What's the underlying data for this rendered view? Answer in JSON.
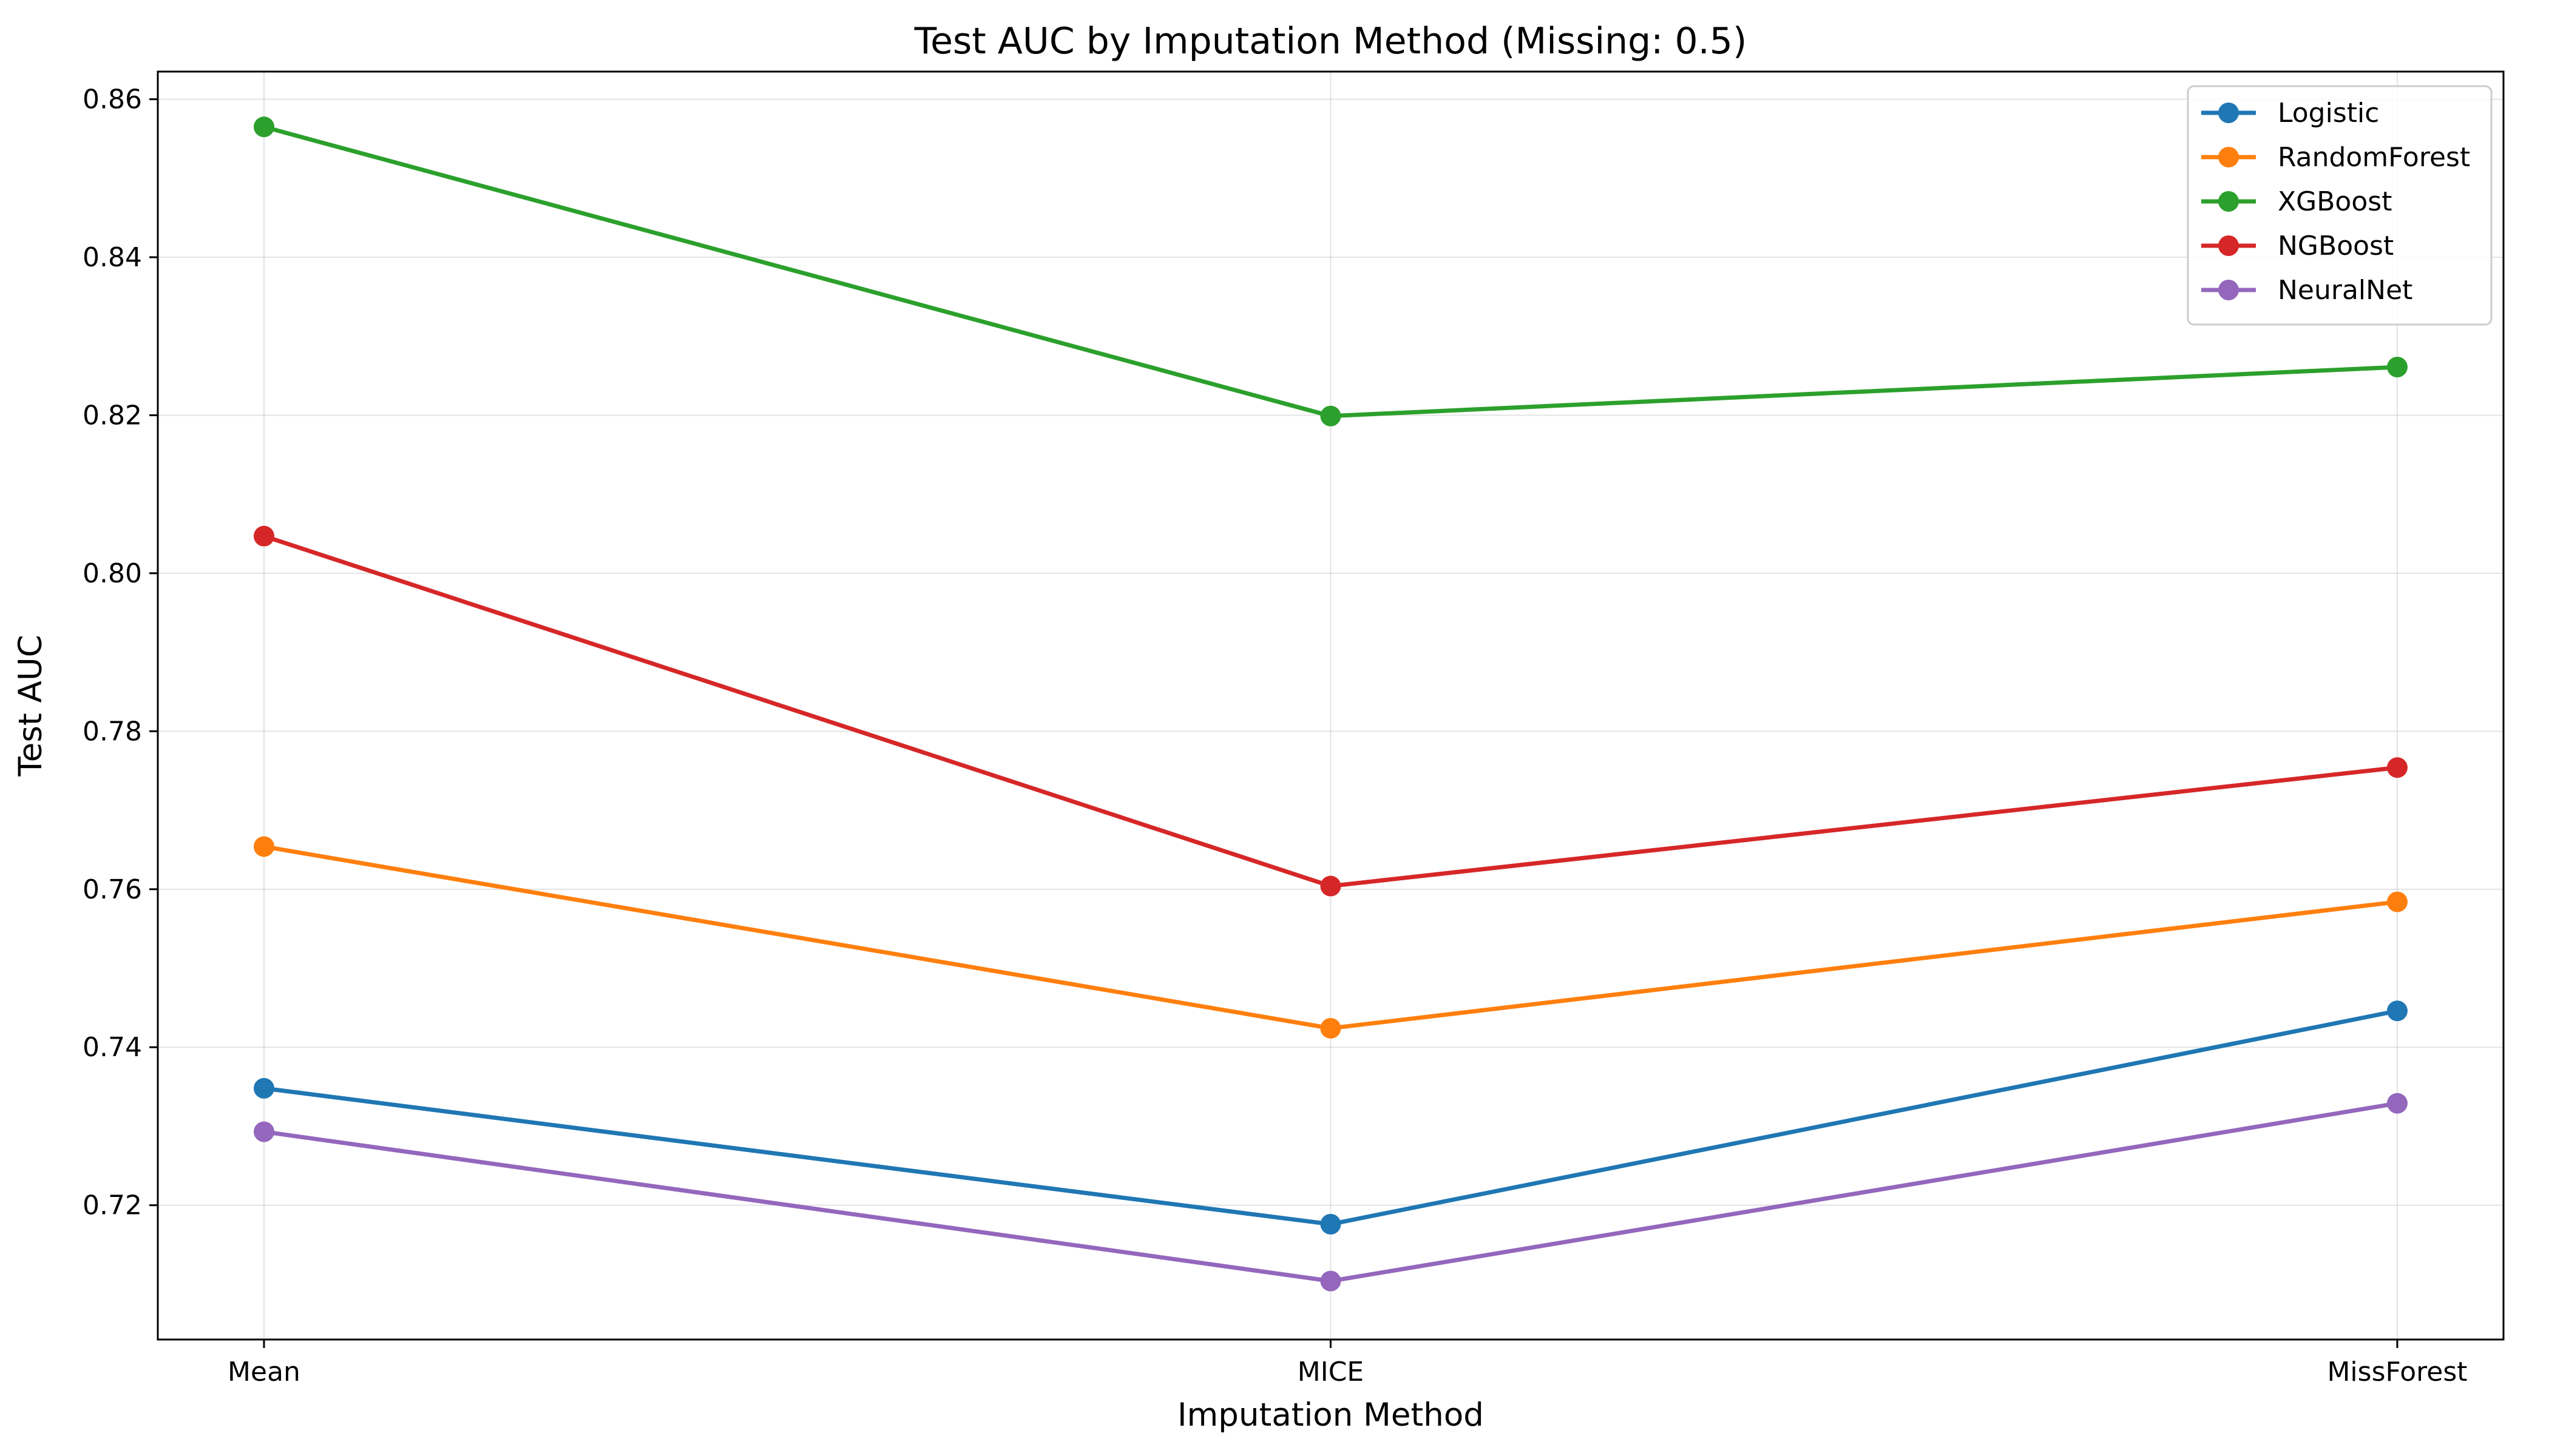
{
  "chart_data": {
    "type": "line",
    "title": "Test AUC by Imputation Method (Missing: 0.5)",
    "xlabel": "Imputation Method",
    "ylabel": "Test AUC",
    "categories": [
      "Mean",
      "MICE",
      "MissForest"
    ],
    "ylim": [
      0.703,
      0.8635
    ],
    "yticks": [
      0.72,
      0.74,
      0.76,
      0.78,
      0.8,
      0.82,
      0.84,
      0.86
    ],
    "ytick_labels": [
      "0.72",
      "0.74",
      "0.76",
      "0.78",
      "0.80",
      "0.82",
      "0.84",
      "0.86"
    ],
    "grid": true,
    "legend_position": "top-right",
    "series": [
      {
        "name": "Logistic",
        "color": "#1f77b4",
        "values": [
          0.7348,
          0.7176,
          0.7446
        ]
      },
      {
        "name": "RandomForest",
        "color": "#ff7f0e",
        "values": [
          0.7654,
          0.7424,
          0.7584
        ]
      },
      {
        "name": "XGBoost",
        "color": "#2ca02c",
        "values": [
          0.8565,
          0.8199,
          0.8261
        ]
      },
      {
        "name": "NGBoost",
        "color": "#d62728",
        "values": [
          0.8047,
          0.7604,
          0.7754
        ]
      },
      {
        "name": "NeuralNet",
        "color": "#9467bd",
        "values": [
          0.7293,
          0.7104,
          0.7329
        ]
      }
    ]
  }
}
